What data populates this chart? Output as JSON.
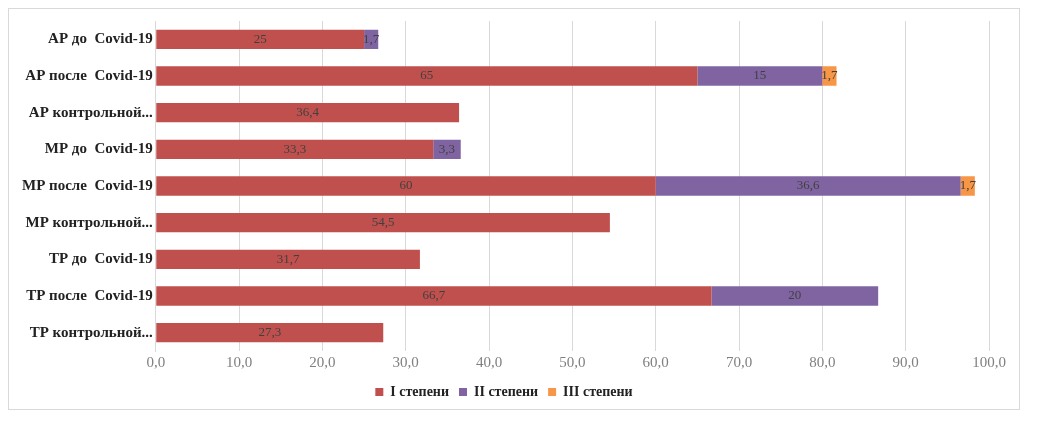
{
  "chart_data": {
    "type": "bar",
    "orientation": "horizontal",
    "stacked": true,
    "categories": [
      "АР до  Covid-19",
      "АР после  Covid-19",
      "АР контрольной...",
      "МР до  Covid-19",
      "МР после  Covid-19",
      "МР контрольной...",
      "ТР до  Covid-19",
      "ТР после  Covid-19",
      "ТР контрольной..."
    ],
    "series": [
      {
        "name": "I степени",
        "color": "#c0504d",
        "values": [
          25,
          65,
          36.4,
          33.3,
          60,
          54.5,
          31.7,
          66.7,
          27.3
        ],
        "value_labels": [
          "25",
          "65",
          "36,4",
          "33,3",
          "60",
          "54,5",
          "31,7",
          "66,7",
          "27,3"
        ]
      },
      {
        "name": "II степени",
        "color": "#8064a2",
        "values": [
          1.7,
          15,
          null,
          3.3,
          36.6,
          null,
          null,
          20,
          null
        ],
        "value_labels": [
          "1,7",
          "15",
          null,
          "3,3",
          "36,6",
          null,
          null,
          "20",
          null
        ]
      },
      {
        "name": "III степени",
        "color": "#f79646",
        "values": [
          null,
          1.7,
          null,
          null,
          1.7,
          null,
          null,
          null,
          null
        ],
        "value_labels": [
          null,
          "1,7",
          null,
          null,
          "1,7",
          null,
          null,
          null,
          null
        ]
      }
    ],
    "xlim": [
      0,
      100
    ],
    "xticks": [
      {
        "value": 0,
        "label": "0,0"
      },
      {
        "value": 10,
        "label": "10,0"
      },
      {
        "value": 20,
        "label": "20,0"
      },
      {
        "value": 30,
        "label": "30,0"
      },
      {
        "value": 40,
        "label": "40,0"
      },
      {
        "value": 50,
        "label": "50,0"
      },
      {
        "value": 60,
        "label": "60,0"
      },
      {
        "value": 70,
        "label": "70,0"
      },
      {
        "value": 80,
        "label": "80,0"
      },
      {
        "value": 90,
        "label": "90,0"
      },
      {
        "value": 100,
        "label": "100,0"
      }
    ],
    "grid": "x",
    "legend": "bottom"
  }
}
